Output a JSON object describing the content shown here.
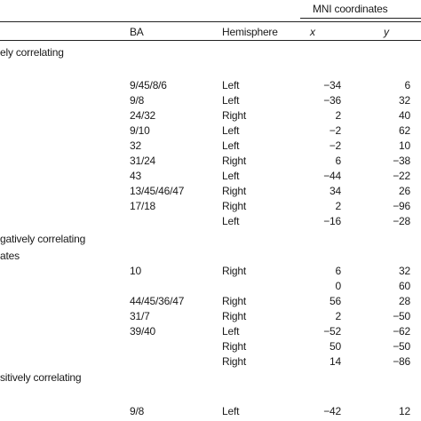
{
  "header": {
    "ba": "BA",
    "hemisphere": "Hemisphere",
    "mni": "MNI coordinates",
    "x": "x",
    "y": "y"
  },
  "sections": {
    "s1": "ely correlating",
    "s2": "gatively correlating",
    "s2b": "ates",
    "s3": "sitively correlating"
  },
  "rows": [
    {
      "ba": "9/45/8/6",
      "hemi": "Left",
      "x": "−34",
      "y": "6"
    },
    {
      "ba": "9/8",
      "hemi": "Left",
      "x": "−36",
      "y": "32"
    },
    {
      "ba": "24/32",
      "hemi": "Right",
      "x": "2",
      "y": "40"
    },
    {
      "ba": "9/10",
      "hemi": "Left",
      "x": "−2",
      "y": "62"
    },
    {
      "ba": "32",
      "hemi": "Left",
      "x": "−2",
      "y": "10"
    },
    {
      "ba": "31/24",
      "hemi": "Right",
      "x": "6",
      "y": "−38"
    },
    {
      "ba": "43",
      "hemi": "Left",
      "x": "−44",
      "y": "−22"
    },
    {
      "ba": "13/45/46/47",
      "hemi": "Right",
      "x": "34",
      "y": "26"
    },
    {
      "ba": "17/18",
      "hemi": "Right",
      "x": "2",
      "y": "−96"
    },
    {
      "ba": "",
      "hemi": "Left",
      "x": "−16",
      "y": "−28"
    },
    {
      "ba": "10",
      "hemi": "Right",
      "x": "6",
      "y": "32"
    },
    {
      "ba": "",
      "hemi": "",
      "x": "0",
      "y": "60"
    },
    {
      "ba": "44/45/36/47",
      "hemi": "Right",
      "x": "56",
      "y": "28"
    },
    {
      "ba": "31/7",
      "hemi": "Right",
      "x": "2",
      "y": "−50"
    },
    {
      "ba": "39/40",
      "hemi": "Left",
      "x": "−52",
      "y": "−62"
    },
    {
      "ba": "",
      "hemi": "Right",
      "x": "50",
      "y": "−50"
    },
    {
      "ba": "",
      "hemi": "Right",
      "x": "14",
      "y": "−86"
    },
    {
      "ba": "9/8",
      "hemi": "Left",
      "x": "−42",
      "y": "12"
    }
  ]
}
